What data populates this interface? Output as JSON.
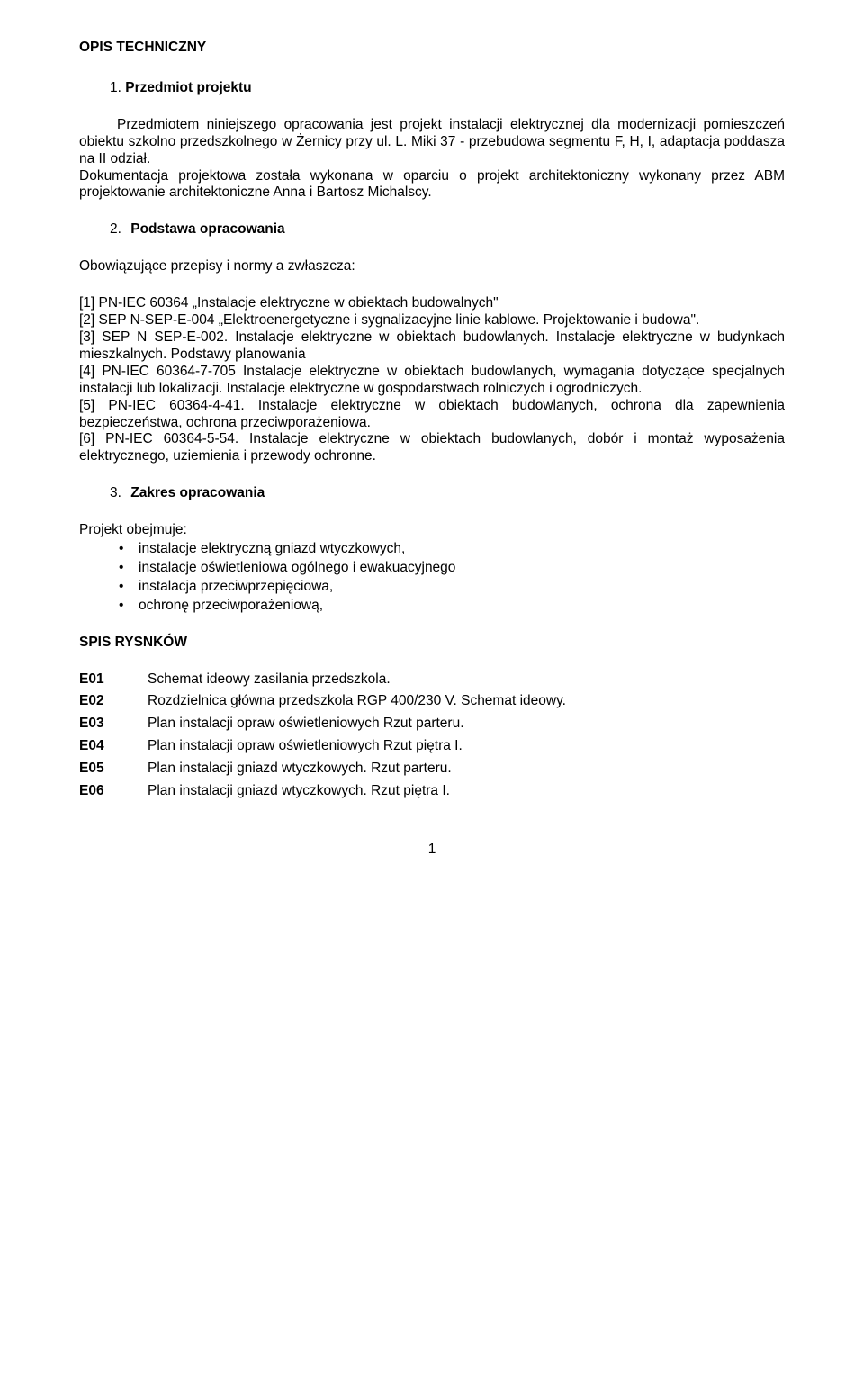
{
  "title": "OPIS TECHNICZNY",
  "sections": {
    "s1": {
      "num": "1.",
      "label": "Przedmiot projektu"
    },
    "s2": {
      "num": "2.",
      "label": "Podstawa opracowania"
    },
    "s3": {
      "num": "3.",
      "label": "Zakres opracowania"
    }
  },
  "para1": "Przedmiotem niniejszego opracowania jest projekt instalacji elektrycznej dla modernizacji pomieszczeń obiektu szkolno przedszkolnego w Żernicy przy ul. L. Miki 37 - przebudowa segmentu F, H, I, adaptacja poddasza na II odział.",
  "para1b": "Dokumentacja projektowa została wykonana w oparciu o projekt architektoniczny wykonany przez ABM projektowanie architektoniczne Anna i Bartosz Michalscy.",
  "para2_lead": "Obowiązujące przepisy i normy a zwłaszcza:",
  "refs": "[1] PN-IEC 60364 „Instalacje elektryczne w obiektach budowalnych\"\n[2] SEP N-SEP-E-004 „Elektroenergetyczne i sygnalizacyjne linie kablowe. Projektowanie i budowa\".\n[3] SEP N SEP-E-002. Instalacje elektryczne w obiektach budowlanych. Instalacje elektryczne w budynkach mieszkalnych. Podstawy planowania\n[4] PN-IEC 60364-7-705 Instalacje elektryczne w obiektach budowlanych, wymagania dotyczące specjalnych instalacji lub lokalizacji. Instalacje elektryczne w gospodarstwach rolniczych i ogrodniczych.\n[5] PN-IEC 60364-4-41. Instalacje elektryczne w obiektach budowlanych, ochrona dla zapewnienia bezpieczeństwa, ochrona przeciwporażeniowa.\n[6] PN-IEC 60364-5-54. Instalacje elektryczne w obiektach budowlanych, dobór i montaż wyposażenia elektrycznego, uziemienia i przewody ochronne.",
  "ref_lines": {
    "l1": "[1] PN-IEC 60364 „Instalacje elektryczne w obiektach budowalnych\"",
    "l2": "[2]  SEP   N-SEP-E-004  „Elektroenergetyczne  i  sygnalizacyjne  linie  kablowe. Projektowanie i budowa\".",
    "l3": "[3] SEP N SEP-E-002. Instalacje elektryczne w obiektach budowlanych. Instalacje elektryczne w budynkach mieszkalnych. Podstawy planowania",
    "l4": "[4]  PN-IEC  60364-7-705  Instalacje  elektryczne  w  obiektach  budowlanych, wymagania dotyczące specjalnych instalacji lub lokalizacji. Instalacje elektryczne w gospodarstwach rolniczych i ogrodniczych.",
    "l5": "[5] PN-IEC 60364-4-41. Instalacje elektryczne w obiektach budowlanych, ochrona dla zapewnienia bezpieczeństwa, ochrona przeciwporażeniowa.",
    "l6": "[6] PN-IEC 60364-5-54. Instalacje elektryczne w obiektach budowlanych, dobór i montaż wyposażenia elektrycznego, uziemienia i przewody ochronne."
  },
  "scope_lead": "Projekt obejmuje:",
  "scope_items": {
    "i1": "instalacje elektryczną gniazd wtyczkowych,",
    "i2": "instalacje oświetleniowa ogólnego i ewakuacyjnego",
    "i3": "instalacja przeciwprzepięciowa,",
    "i4": "ochronę przeciwporażeniową,"
  },
  "spis_title": "SPIS RYSNKÓW",
  "spis": {
    "r1": {
      "code": "E01",
      "text": "Schemat ideowy zasilania przedszkola."
    },
    "r2": {
      "code": "E02",
      "text": "Rozdzielnica główna przedszkola RGP 400/230 V. Schemat ideowy."
    },
    "r3": {
      "code": "E03",
      "text": "Plan instalacji opraw oświetleniowych Rzut parteru."
    },
    "r4": {
      "code": "E04",
      "text": "Plan instalacji opraw oświetleniowych Rzut piętra I."
    },
    "r5": {
      "code": "E05",
      "text": "Plan instalacji gniazd wtyczkowych. Rzut parteru."
    },
    "r6": {
      "code": "E06",
      "text": "Plan instalacji gniazd wtyczkowych. Rzut piętra I."
    }
  },
  "page_number": "1",
  "bullet": "•",
  "colors": {
    "text": "#000000",
    "background": "#ffffff"
  },
  "typography": {
    "font_family": "Arial",
    "body_size_pt": 12,
    "line_height": 1.22
  }
}
